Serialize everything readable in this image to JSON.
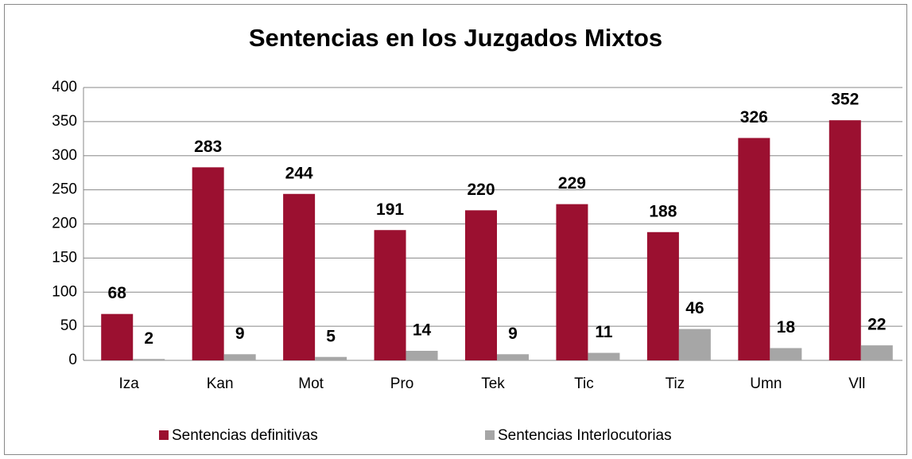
{
  "chart_data": {
    "type": "bar",
    "title": "Sentencias en los Juzgados Mixtos",
    "categories": [
      "Iza",
      "Kan",
      "Mot",
      "Pro",
      "Tek",
      "Tic",
      "Tiz",
      "Umn",
      "Vll"
    ],
    "series": [
      {
        "name": "Sentencias definitivas",
        "color": "#9b1030",
        "values": [
          68,
          283,
          244,
          191,
          220,
          229,
          188,
          326,
          352
        ]
      },
      {
        "name": "Sentencias Interlocutorias",
        "color": "#a6a6a6",
        "values": [
          2,
          9,
          5,
          14,
          9,
          11,
          46,
          18,
          22
        ]
      }
    ],
    "ylim": [
      0,
      400
    ],
    "yticks": [
      0,
      50,
      100,
      150,
      200,
      250,
      300,
      350,
      400
    ],
    "grid": true,
    "legend": "bottom"
  }
}
